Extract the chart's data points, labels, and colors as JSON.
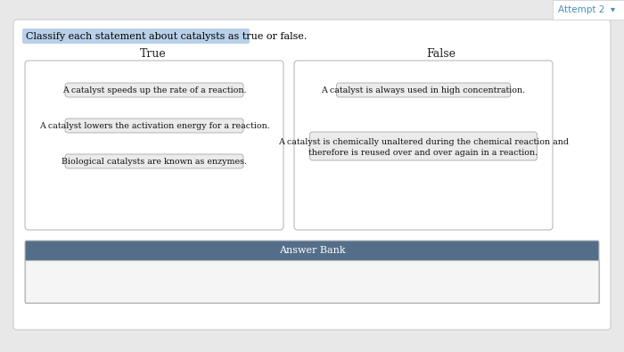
{
  "title": "Classify each statement about catalysts as true or false.",
  "title_highlight_color": "#b8d0e8",
  "title_text_color": "#000000",
  "background_color": "#e8e8e8",
  "main_bg_color": "#ffffff",
  "attempt_text": "Attempt 2  ▾",
  "attempt_color": "#4a90b8",
  "attempt_bg": "#ffffff",
  "col_true_label": "True",
  "col_false_label": "False",
  "true_items": [
    "A catalyst speeds up the rate of a reaction.",
    "A catalyst lowers the activation energy for a reaction.",
    "Biological catalysts are known as enzymes."
  ],
  "false_item1": "A catalyst is always used in high concentration.",
  "false_item2_line1": "A catalyst is chemically unaltered during the chemical reaction and",
  "false_item2_line2": "therefore is reused over and over again in a reaction.",
  "answer_bank_label": "Answer Bank",
  "answer_bank_header_color": "#546e8a",
  "answer_bank_header_text_color": "#ffffff",
  "answer_bank_body_color": "#f5f5f5",
  "box_border_color": "#bbbbbb",
  "item_bg_color": "#ebebeb",
  "item_border_color": "#aaaaaa",
  "outer_border_color": "#cccccc",
  "outer_bg_color": "#ffffff"
}
